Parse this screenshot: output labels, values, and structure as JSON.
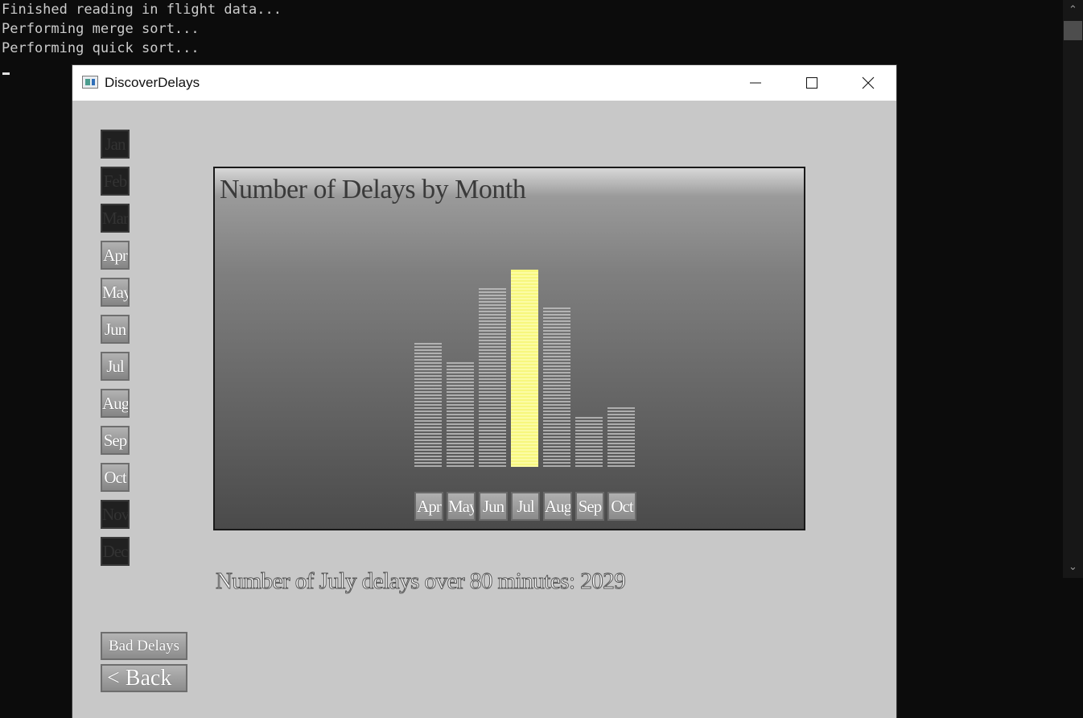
{
  "console": {
    "lines": [
      "Finished reading in flight data...",
      "Performing merge sort...",
      "Performing quick sort..."
    ]
  },
  "window": {
    "title": "DiscoverDelays"
  },
  "sidebar": {
    "months": [
      {
        "label": "Jan",
        "enabled": false
      },
      {
        "label": "Feb",
        "enabled": false
      },
      {
        "label": "Mar",
        "enabled": false
      },
      {
        "label": "Apr",
        "enabled": true
      },
      {
        "label": "May",
        "enabled": true
      },
      {
        "label": "Jun",
        "enabled": true
      },
      {
        "label": "Jul",
        "enabled": true
      },
      {
        "label": "Aug",
        "enabled": true
      },
      {
        "label": "Sep",
        "enabled": true
      },
      {
        "label": "Oct",
        "enabled": true
      },
      {
        "label": "Nov",
        "enabled": false
      },
      {
        "label": "Dec",
        "enabled": false
      }
    ]
  },
  "chart_data": {
    "type": "bar",
    "title": "Number of Delays by Month",
    "categories": [
      "Apr",
      "May",
      "Jun",
      "Jul",
      "Aug",
      "Sep",
      "Oct"
    ],
    "values": [
      1300,
      1100,
      1850,
      2029,
      1650,
      520,
      620
    ],
    "highlighted": "Jul",
    "colors": {
      "bar": "#c8c8c8",
      "highlight": "#f7f77e"
    },
    "xlabel": "",
    "ylabel": ""
  },
  "result": {
    "text": "Number of July delays over 80 minutes: 2029"
  },
  "buttons": {
    "bad_delays": "Bad Delays",
    "back": "< Back"
  }
}
